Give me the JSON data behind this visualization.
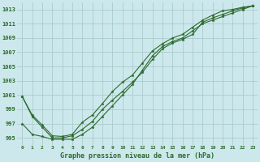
{
  "title": "Graphe pression niveau de la mer (hPa)",
  "background_color": "#cce8ec",
  "grid_color": "#aacccc",
  "line_color": "#2d6a2d",
  "x_ticks": [
    0,
    1,
    2,
    3,
    4,
    5,
    6,
    7,
    8,
    9,
    10,
    11,
    12,
    13,
    14,
    15,
    16,
    17,
    18,
    19,
    20,
    21,
    22,
    23
  ],
  "ylim": [
    994.0,
    1014.0
  ],
  "yticks": [
    995,
    997,
    999,
    1001,
    1003,
    1005,
    1007,
    1009,
    1011,
    1013
  ],
  "series": [
    [
      1000.8,
      998.0,
      996.5,
      995.0,
      995.0,
      995.3,
      996.2,
      997.3,
      999.0,
      1000.3,
      1001.5,
      1002.8,
      1004.2,
      1006.0,
      1007.5,
      1008.3,
      1008.8,
      1009.5,
      1011.2,
      1011.8,
      1012.3,
      1012.8,
      1013.2,
      1013.5
    ],
    [
      1000.8,
      998.2,
      996.8,
      995.3,
      995.2,
      995.5,
      997.2,
      998.2,
      999.8,
      1001.5,
      1002.8,
      1003.8,
      1005.5,
      1007.2,
      1008.2,
      1009.0,
      1009.5,
      1010.5,
      1011.5,
      1012.2,
      1012.8,
      1013.0,
      1013.3,
      1013.5
    ],
    [
      997.0,
      995.5,
      995.2,
      994.8,
      994.8,
      994.8,
      995.5,
      996.5,
      998.0,
      999.5,
      1001.0,
      1002.5,
      1004.5,
      1006.5,
      1007.8,
      1008.5,
      1009.0,
      1010.0,
      1011.0,
      1011.5,
      1012.0,
      1012.5,
      1013.0,
      1013.5
    ]
  ]
}
